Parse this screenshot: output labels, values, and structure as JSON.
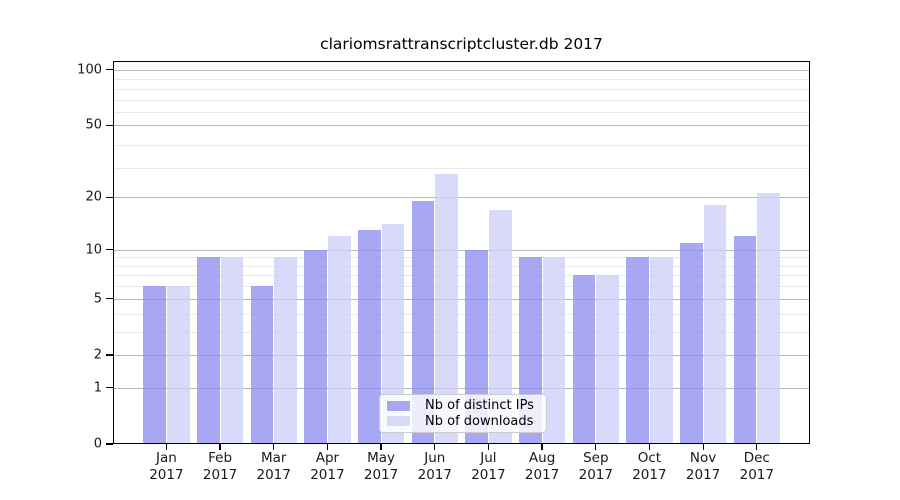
{
  "chart_data": {
    "type": "bar",
    "title": "clariomsrattranscriptcluster.db 2017",
    "categories": [
      "Jan",
      "Feb",
      "Mar",
      "Apr",
      "May",
      "Jun",
      "Jul",
      "Aug",
      "Sep",
      "Oct",
      "Nov",
      "Dec"
    ],
    "x_year_label": "2017",
    "series": [
      {
        "name": "Nb of distinct IPs",
        "color": "#8e8ef0",
        "values": [
          6,
          9,
          6,
          10,
          13,
          19,
          10,
          9,
          7,
          9,
          11,
          12
        ]
      },
      {
        "name": "Nb of downloads",
        "color": "#cecef7",
        "values": [
          6,
          9,
          9,
          12,
          14,
          27,
          17,
          9,
          7,
          9,
          18,
          21
        ]
      }
    ],
    "y_axis": {
      "scale": "log1p",
      "tick_labels": [
        "100",
        "50",
        "20",
        "10",
        "5",
        "2",
        "1",
        "0"
      ],
      "tick_values": [
        100,
        50,
        20,
        10,
        5,
        2,
        1,
        0
      ],
      "minor_grid_values": [
        3,
        4,
        6,
        7,
        8,
        9,
        29,
        39,
        59,
        69,
        79,
        89
      ],
      "range": [
        0,
        112
      ]
    },
    "legend_position": "bottom-center",
    "grid": true
  },
  "colors": {
    "major_grid": "#b9b9b9",
    "minor_grid": "#e9e9e9",
    "axis": "#000000",
    "background": "#ffffff"
  }
}
